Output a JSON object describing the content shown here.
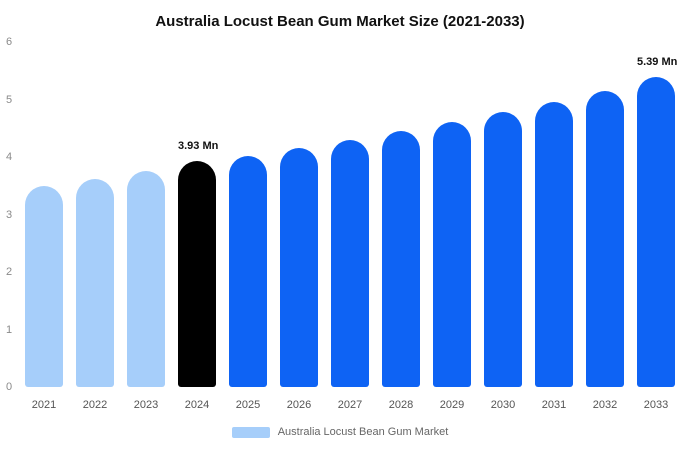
{
  "title": "Australia Locust Bean Gum Market Size (2021-2033)",
  "legend": {
    "label": "Australia Locust Bean Gum Market",
    "swatch_color": "#A6CEFA"
  },
  "y_axis": {
    "ticks": [
      "6",
      "5",
      "4",
      "3",
      "2",
      "1",
      "0"
    ]
  },
  "colors": {
    "historical": "#A6CEFA",
    "highlight": "#000000",
    "forecast": "#0E63F4"
  },
  "chart_data": {
    "type": "bar",
    "title": "Australia Locust Bean Gum Market Size (2021-2033)",
    "categories": [
      "2021",
      "2022",
      "2023",
      "2024",
      "2025",
      "2026",
      "2027",
      "2028",
      "2029",
      "2030",
      "2031",
      "2032",
      "2033"
    ],
    "values": [
      3.5,
      3.62,
      3.76,
      3.93,
      4.02,
      4.16,
      4.3,
      4.45,
      4.61,
      4.78,
      4.96,
      5.15,
      5.39
    ],
    "unit": "Mn",
    "ylim": [
      0,
      6
    ],
    "grid": false,
    "legend_position": "bottom",
    "bar_colors": [
      "#A6CEFA",
      "#A6CEFA",
      "#A6CEFA",
      "#000000",
      "#0E63F4",
      "#0E63F4",
      "#0E63F4",
      "#0E63F4",
      "#0E63F4",
      "#0E63F4",
      "#0E63F4",
      "#0E63F4",
      "#0E63F4"
    ],
    "annotations": [
      {
        "category": "2024",
        "text": "3.93 Mn"
      },
      {
        "category": "2033",
        "text": "5.39 Mn"
      }
    ]
  }
}
